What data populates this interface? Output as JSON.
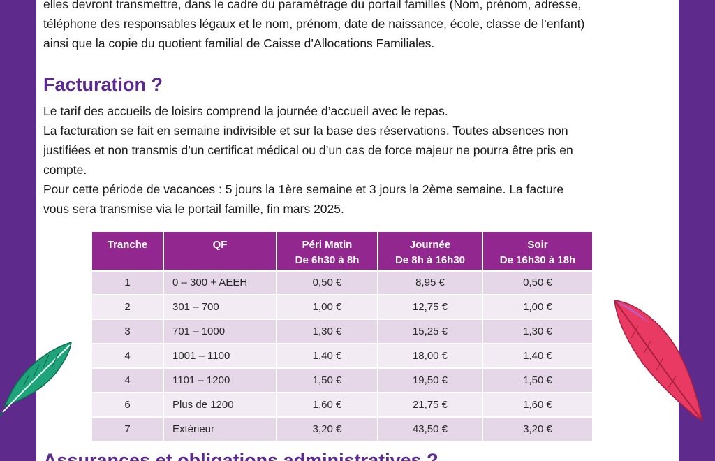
{
  "intro_lines": [
    "elles devront transmettre, dans le cadre du paramétrage du portail familles (Nom, prénom, adresse,",
    "téléphone des responsables légaux et le nom, prénom, date de naissance, école, classe de l’enfant)",
    "ainsi que la copie du quotient familial de Caisse d’Allocations Familiales."
  ],
  "billing_heading": "Facturation ?",
  "billing_lines": [
    "Le tarif des accueils de loisirs comprend la journée d’accueil avec le repas.",
    "La facturation se fait en semaine indivisible et sur la base des réservations. Toutes absences non",
    "justifiées et non transmis d’un certificat médical ou d’un cas de force majeur ne pourra être pris en",
    "compte.",
    "Pour cette période de vacances : 5 jours la 1ère semaine et 3 jours la 2ème semaine. La facture",
    "vous sera transmise via le portail famille, fin mars 2025."
  ],
  "table": {
    "headers": [
      {
        "line1": "Tranche",
        "line2": ""
      },
      {
        "line1": "QF",
        "line2": ""
      },
      {
        "line1": "Péri Matin",
        "line2": "De 6h30 à 8h"
      },
      {
        "line1": "Journée",
        "line2": "De 8h à 16h30"
      },
      {
        "line1": "Soir",
        "line2": "De 16h30 à 18h"
      }
    ],
    "rows": [
      [
        "1",
        "0 – 300 + AEEH",
        "0,50 €",
        "8,95 €",
        "0,50 €"
      ],
      [
        "2",
        "301 – 700",
        "1,00 €",
        "12,75 €",
        "1,00 €"
      ],
      [
        "3",
        "701 – 1000",
        "1,30 €",
        "15,25 €",
        "1,30 €"
      ],
      [
        "4",
        "1001 – 1100",
        "1,40 €",
        "18,00 €",
        "1,40 €"
      ],
      [
        "4",
        "1101 – 1200",
        "1,50 €",
        "19,50 €",
        "1,50 €"
      ],
      [
        "6",
        "Plus de 1200",
        "1,60 €",
        "21,75 €",
        "1,60 €"
      ],
      [
        "7",
        "Extérieur",
        "3,20 €",
        "43,50 €",
        "3,20 €"
      ]
    ]
  },
  "bottom_heading": "Assurances et obligations administratives ?",
  "colors": {
    "background": "#5e2a8c",
    "heading": "#5b2a8e",
    "table_header": "#92278f",
    "row_odd": "#e5d6e8",
    "row_even": "#f3ebf4"
  },
  "decorations": [
    "green-feather-icon",
    "pink-feather-icon"
  ]
}
